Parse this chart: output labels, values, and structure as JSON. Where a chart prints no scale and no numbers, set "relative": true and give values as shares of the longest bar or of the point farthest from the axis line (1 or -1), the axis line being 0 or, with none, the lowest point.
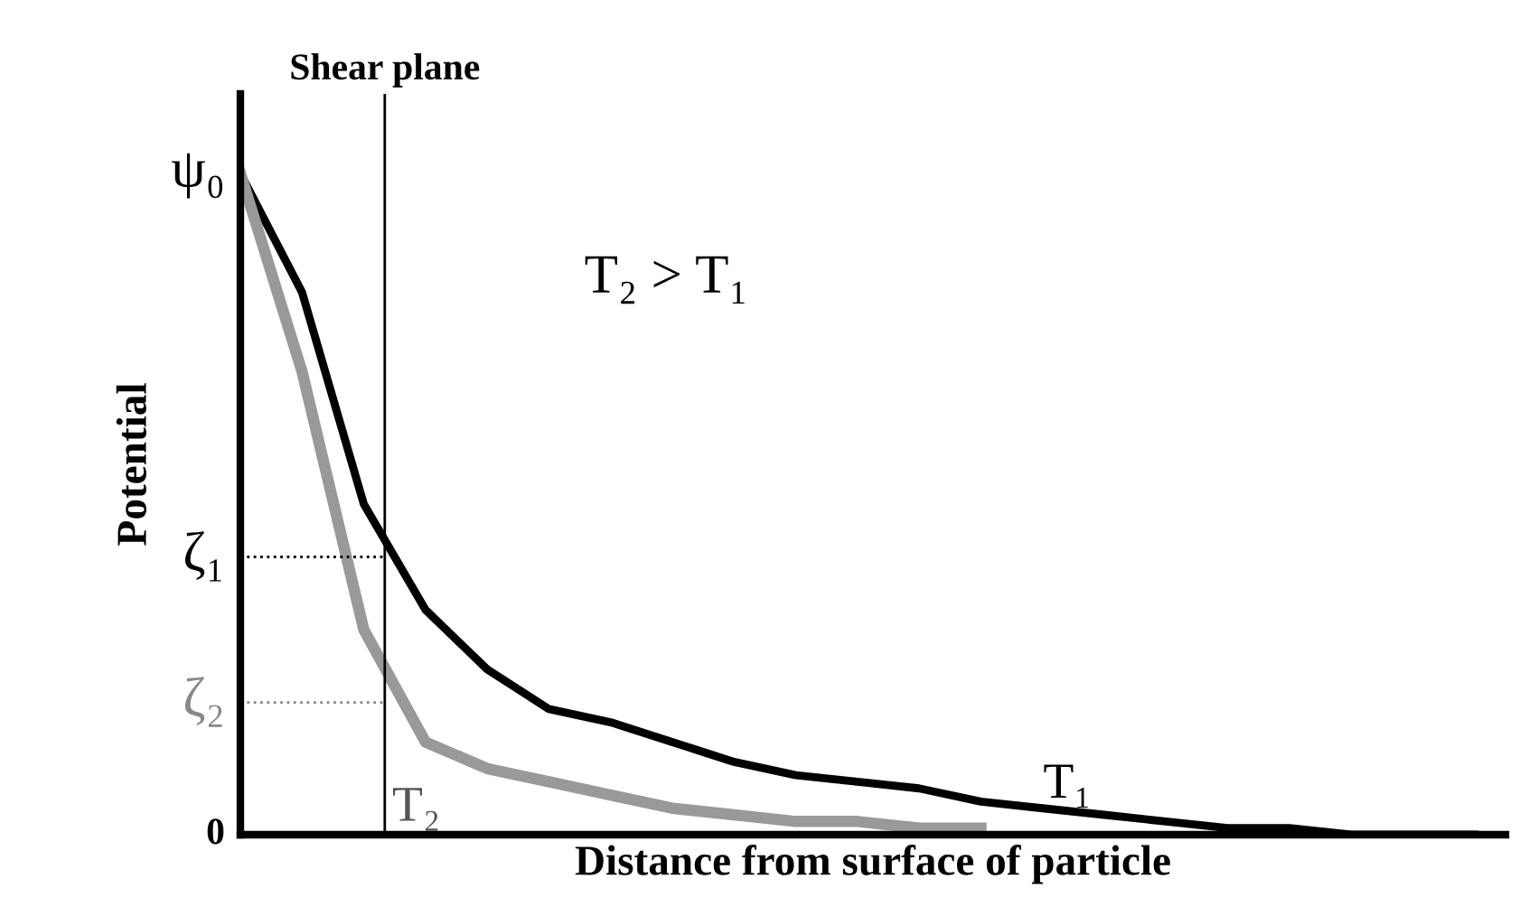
{
  "chart_data": {
    "type": "line",
    "relative": true,
    "xlabel": "Distance from surface of particle",
    "ylabel": "Potential",
    "categories": [
      null,
      null,
      null,
      null,
      null,
      null,
      null,
      null,
      null,
      null,
      null,
      null,
      null,
      null,
      null,
      null,
      null,
      null,
      null,
      null,
      null
    ],
    "series": [
      {
        "name": "T₁",
        "color": "#000000",
        "values": [
          1.0,
          0.82,
          0.5,
          0.34,
          0.25,
          0.19,
          0.17,
          0.14,
          0.11,
          0.09,
          0.08,
          0.07,
          0.05,
          0.04,
          0.03,
          0.02,
          0.01,
          0.01,
          0.0,
          0.0,
          0.0
        ]
      },
      {
        "name": "T₂",
        "color": "#999999",
        "values": [
          1.0,
          0.7,
          0.31,
          0.14,
          0.1,
          0.08,
          0.06,
          0.04,
          0.03,
          0.02,
          0.02,
          0.01,
          0.01,
          null,
          null,
          null,
          null,
          null,
          null,
          null,
          null
        ]
      }
    ],
    "ref_lines": [
      {
        "axis": "y",
        "value": 0.42,
        "label": "ζ₁",
        "color": "#000000",
        "line_style": "dotted"
      },
      {
        "axis": "y",
        "value": 0.2,
        "label": "ζ₂",
        "color": "#888888",
        "line_style": "dotted"
      }
    ],
    "annotations": [
      "Shear plane",
      "ψ₀",
      "0",
      "T₂ > T₁"
    ],
    "legend": false,
    "marker": "none",
    "line_style": "solid"
  }
}
